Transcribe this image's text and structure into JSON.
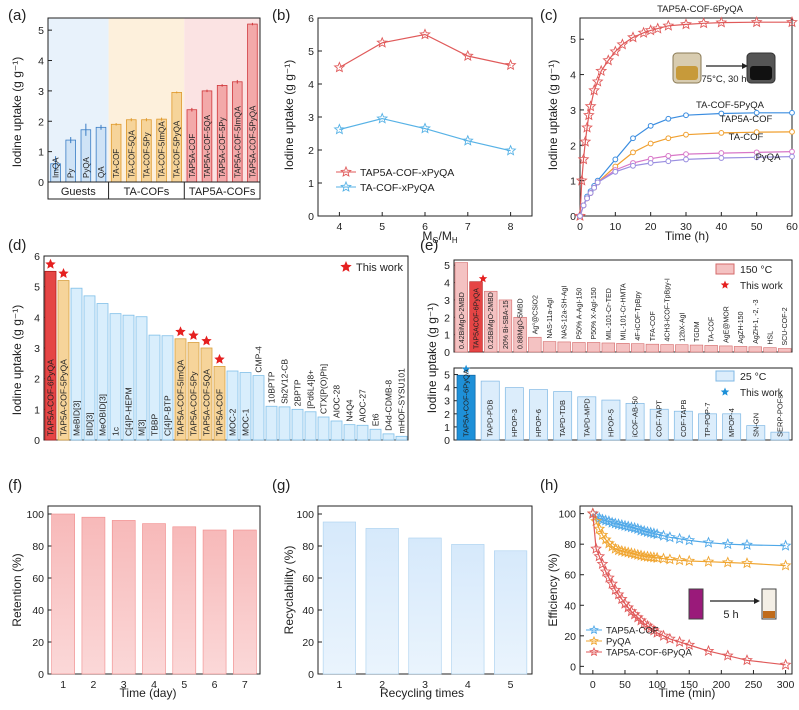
{
  "panels": {
    "a": {
      "panel_label": "(a)",
      "ylabel": "Iodine uptake (g g⁻¹)",
      "yticks": [
        "0",
        "1",
        "2",
        "3",
        "4",
        "5"
      ],
      "groups": [
        {
          "name": "Guests",
          "color": "#e8f2fb",
          "bar": "#cfe3f6",
          "edge": "#3a7dc4"
        },
        {
          "name": "TA-COFs",
          "color": "#fdf0dc",
          "bar": "#f6d49a",
          "edge": "#e09a2c"
        },
        {
          "name": "TAP5A-COFs",
          "color": "#fbe3e3",
          "bar": "#f3a9a9",
          "edge": "#d0383c"
        }
      ]
    },
    "b": {
      "panel_label": "(b)",
      "xlabel": "M",
      "xsub1": "G",
      "xmid": "/M",
      "xsub2": "H",
      "ylabel": "Iodine uptake (g g⁻¹)",
      "xticks": [
        "4",
        "5",
        "6",
        "7",
        "8"
      ],
      "yticks": [
        "0",
        "1",
        "2",
        "3",
        "4",
        "5",
        "6"
      ]
    },
    "c": {
      "panel_label": "(c)",
      "xlabel": "Time (h)",
      "ylabel": "Iodine uptake (g g⁻¹)",
      "xticks": [
        "0",
        "10",
        "20",
        "30",
        "40",
        "50",
        "60"
      ],
      "yticks": [
        "0",
        "1",
        "2",
        "3",
        "4",
        "5"
      ],
      "inset_label": "75°C, 30 h"
    },
    "d": {
      "panel_label": "(d)",
      "ylabel": "Iodine uptake (g g⁻¹)",
      "yticks": [
        "0",
        "1",
        "2",
        "3",
        "4",
        "5",
        "6"
      ],
      "legend": "This work"
    },
    "e": {
      "panel_label": "(e)",
      "ylabel": "Iodine uptake (g g⁻¹)",
      "yticks_top": [
        "0",
        "1",
        "2",
        "3",
        "4",
        "5"
      ],
      "yticks_bottom": [
        "0",
        "1",
        "2",
        "3",
        "4",
        "5"
      ],
      "legend_top_temp": "150 °C",
      "legend_bottom_temp": "25 °C",
      "legend_star": "This work"
    },
    "f": {
      "panel_label": "(f)",
      "xlabel": "Time (day)",
      "ylabel": "Retention (%)",
      "yticks": [
        "0",
        "20",
        "40",
        "60",
        "80",
        "100"
      ]
    },
    "g": {
      "panel_label": "(g)",
      "xlabel": "Recycling times",
      "ylabel": "Recyclability (%)",
      "yticks": [
        "0",
        "20",
        "40",
        "60",
        "80",
        "100"
      ]
    },
    "h": {
      "panel_label": "(h)",
      "xlabel": "Time (min)",
      "ylabel": "Efficiency (%)",
      "xticks": [
        "0",
        "50",
        "100",
        "150",
        "200",
        "250",
        "300"
      ],
      "yticks": [
        "0",
        "20",
        "40",
        "60",
        "80",
        "100"
      ],
      "inset_label": "5 h"
    }
  },
  "chart_data": [
    {
      "id": "a",
      "type": "bar",
      "ylim": [
        0,
        5.4
      ],
      "categories": [
        "ImQA",
        "Py",
        "PyQA",
        "QA",
        "TA-COF",
        "TA-COF-5QA",
        "TA-COF-5Py",
        "TA-COF-5ImQA",
        "TA-COF-5PyQA",
        "TAP5A-COF",
        "TAP5A-COF-5QA",
        "TAP5A-COF-5Py",
        "TAP5A-COF-5ImQA",
        "TAP5A-COF-5PyQA"
      ],
      "values": [
        0.6,
        1.38,
        1.72,
        1.8,
        1.9,
        2.05,
        2.05,
        2.07,
        2.95,
        2.38,
        3.0,
        3.18,
        3.3,
        5.2
      ],
      "errors": [
        0.25,
        0.1,
        0.2,
        0.08,
        0.04,
        0.05,
        0.05,
        0.05,
        0.03,
        0.06,
        0.04,
        0.04,
        0.06,
        0.04
      ],
      "group_index": [
        0,
        0,
        0,
        0,
        1,
        1,
        1,
        1,
        1,
        2,
        2,
        2,
        2,
        2
      ],
      "group_labels": [
        "Guests",
        "TA-COFs",
        "TAP5A-COFs"
      ]
    },
    {
      "id": "b",
      "type": "line",
      "xlim": [
        3.5,
        8.5
      ],
      "ylim": [
        0,
        6
      ],
      "x": [
        4,
        5,
        6,
        7,
        8
      ],
      "series": [
        {
          "name": "TAP5A-COF-xPyQA",
          "values": [
            4.5,
            5.25,
            5.5,
            4.85,
            4.57
          ],
          "color": "#e05a5a"
        },
        {
          "name": "TA-COF-xPyQA",
          "values": [
            2.62,
            2.95,
            2.65,
            2.28,
            1.98
          ],
          "color": "#57b2e6"
        }
      ]
    },
    {
      "id": "c",
      "type": "line",
      "xlim": [
        0,
        60
      ],
      "ylim": [
        0,
        5.6
      ],
      "series": [
        {
          "name": "TAP5A-COF-6PyQA",
          "color": "#e05a5a",
          "x": [
            0,
            0.5,
            1,
            1.5,
            2,
            2.5,
            3,
            4,
            5,
            6,
            8,
            10,
            12,
            15,
            18,
            20,
            22,
            25,
            30,
            35,
            40,
            50,
            60
          ],
          "values": [
            0,
            1.0,
            1.6,
            2.1,
            2.5,
            2.85,
            3.1,
            3.55,
            3.8,
            4.1,
            4.4,
            4.65,
            4.85,
            5.05,
            5.18,
            5.25,
            5.3,
            5.38,
            5.42,
            5.45,
            5.47,
            5.48,
            5.48
          ]
        },
        {
          "name": "TA-COF-5PyQA",
          "color": "#3b8de0",
          "x": [
            0,
            1,
            2,
            3,
            4,
            5,
            10,
            15,
            20,
            25,
            30,
            40,
            50,
            60
          ],
          "values": [
            0,
            0.3,
            0.55,
            0.7,
            0.85,
            1.0,
            1.6,
            2.2,
            2.55,
            2.75,
            2.85,
            2.9,
            2.92,
            2.92
          ]
        },
        {
          "name": "TAP5A-COF",
          "color": "#f0a030",
          "x": [
            0,
            1,
            2,
            3,
            4,
            5,
            10,
            15,
            20,
            25,
            30,
            40,
            50,
            60
          ],
          "values": [
            0,
            0.3,
            0.5,
            0.65,
            0.8,
            0.95,
            1.4,
            1.8,
            2.05,
            2.2,
            2.3,
            2.35,
            2.37,
            2.38
          ]
        },
        {
          "name": "TA-COF",
          "color": "#d877c8",
          "x": [
            0,
            1,
            2,
            3,
            4,
            5,
            10,
            15,
            20,
            25,
            30,
            40,
            50,
            60
          ],
          "values": [
            0,
            0.3,
            0.5,
            0.65,
            0.8,
            0.95,
            1.3,
            1.5,
            1.62,
            1.7,
            1.75,
            1.78,
            1.8,
            1.82
          ]
        },
        {
          "name": "PyQA",
          "color": "#9a8fe0",
          "x": [
            0,
            1,
            2,
            3,
            4,
            5,
            10,
            15,
            20,
            25,
            30,
            40,
            50,
            60
          ],
          "values": [
            0,
            0.3,
            0.5,
            0.65,
            0.8,
            0.95,
            1.25,
            1.42,
            1.5,
            1.55,
            1.6,
            1.64,
            1.66,
            1.68
          ]
        }
      ]
    },
    {
      "id": "d",
      "type": "bar",
      "ylim": [
        0,
        6
      ],
      "categories": [
        "TAP5A-COF-6PyQA",
        "TAP5A-COF-5PyQA",
        "MeBID[3]",
        "BID[3]",
        "MeOBID[3]",
        "1c",
        "C[4]P-HEPM",
        "M[3]",
        "TBBP",
        "C[4]P-BTP",
        "TAP5A-COF-5ImQA",
        "TAP5A-COF-5Py",
        "TAP5A-COF-5QA",
        "TAP5A-COF",
        "MOC-2",
        "MOC-1",
        "CMP-4",
        "10BPTP",
        "Sb2V12-CB",
        "2BPTP",
        "[Pd6L4]8+",
        "CTX[P(O)Ph]",
        "AIOC-28",
        "N4Q4",
        "AIOC-27",
        "Et6",
        "D4d-CDMB-8",
        "mHOF-SYSU101"
      ],
      "values": [
        5.5,
        5.2,
        4.95,
        4.7,
        4.45,
        4.12,
        4.07,
        4.02,
        3.42,
        3.4,
        3.3,
        3.18,
        3.0,
        2.4,
        2.25,
        2.2,
        2.1,
        1.1,
        1.08,
        1.0,
        0.92,
        0.75,
        0.62,
        0.5,
        0.48,
        0.35,
        0.2,
        0.12
      ],
      "this_work": [
        true,
        true,
        false,
        false,
        false,
        false,
        false,
        false,
        false,
        false,
        true,
        true,
        true,
        true,
        false,
        false,
        false,
        false,
        false,
        false,
        false,
        false,
        false,
        false,
        false,
        false,
        false,
        false
      ]
    },
    {
      "id": "e_top",
      "type": "bar",
      "title": "150 °C",
      "ylim": [
        0,
        5.3
      ],
      "categories": [
        "0.42BiMgO-2MBD",
        "TAP5ACOF-6PyQA",
        "0.25BiMgO-2MBD",
        "20% Bi-SBA-15",
        "0.88MgO-5MBD",
        "Ag⁰@CSiO2",
        "NAS-11a-AgI",
        "NAS-12a-SH-AgI",
        "P50% A-AgI-150",
        "P50% X-AgI-150",
        "MIL-101-Cr-TED",
        "MIL-101-Cr-HMTA",
        "4F-iCOF-TpBpy",
        "TFA-COF",
        "4CH3-iCOF-TpBpy-I",
        "12bX-AgI",
        "TGDM",
        "TA-COF",
        "AgE@MOR",
        "AgZH-150",
        "AgZH-1, -2, -3",
        "HSL",
        "SCU-COF-2"
      ],
      "values": [
        5.15,
        4.05,
        3.5,
        3.0,
        2.0,
        0.85,
        0.6,
        0.58,
        0.55,
        0.55,
        0.52,
        0.5,
        0.48,
        0.45,
        0.43,
        0.42,
        0.4,
        0.38,
        0.35,
        0.32,
        0.3,
        0.25,
        0.2
      ],
      "this_work": [
        false,
        true,
        false,
        false,
        false,
        false,
        false,
        false,
        false,
        false,
        false,
        false,
        false,
        false,
        false,
        false,
        false,
        false,
        false,
        false,
        false,
        false,
        false
      ]
    },
    {
      "id": "e_bottom",
      "type": "bar",
      "title": "25 °C",
      "ylim": [
        0,
        5.5
      ],
      "categories": [
        "TAP5A-COF-6PyQA",
        "TAPD-PDB",
        "HPOP-3",
        "HPOP-6",
        "TAPD-TDB",
        "TAPD-MPD",
        "HPOP-5",
        "iCOF-AB-50",
        "COF-TAPT",
        "COF-TAPB",
        "TP-POP-7",
        "MPOP-4",
        "SN-GN",
        "SERP-POFs"
      ],
      "values": [
        4.95,
        4.5,
        4.0,
        3.85,
        3.7,
        3.3,
        3.05,
        2.8,
        2.35,
        2.2,
        2.0,
        2.0,
        1.1,
        0.6
      ],
      "this_work": [
        true,
        false,
        false,
        false,
        false,
        false,
        false,
        false,
        false,
        false,
        false,
        false,
        false,
        false
      ]
    },
    {
      "id": "f",
      "type": "bar",
      "ylim": [
        0,
        105
      ],
      "categories": [
        "1",
        "2",
        "3",
        "4",
        "5",
        "6",
        "7"
      ],
      "values": [
        100,
        98,
        96,
        94,
        92,
        90,
        90
      ]
    },
    {
      "id": "g",
      "type": "bar",
      "ylim": [
        0,
        105
      ],
      "categories": [
        "1",
        "2",
        "3",
        "4",
        "5"
      ],
      "values": [
        95,
        91,
        85,
        81,
        77
      ]
    },
    {
      "id": "h",
      "type": "line",
      "xlim": [
        -20,
        310
      ],
      "ylim": [
        -5,
        105
      ],
      "series": [
        {
          "name": "TAP5A-COF",
          "color": "#4fa8e8",
          "x": [
            0,
            5,
            10,
            15,
            20,
            25,
            30,
            35,
            40,
            45,
            50,
            55,
            60,
            65,
            70,
            75,
            80,
            85,
            90,
            95,
            100,
            110,
            120,
            135,
            150,
            180,
            210,
            240,
            300
          ],
          "values": [
            100,
            98,
            97,
            96,
            95.5,
            95,
            94,
            93.5,
            93,
            92.5,
            92,
            91.5,
            91,
            90.5,
            90,
            89,
            88.5,
            88,
            87.5,
            87,
            86.5,
            85.5,
            84.5,
            83.5,
            82.5,
            81,
            80,
            79.5,
            79
          ]
        },
        {
          "name": "PyQA",
          "color": "#f0a530",
          "x": [
            0,
            5,
            10,
            15,
            20,
            25,
            30,
            35,
            40,
            45,
            50,
            55,
            60,
            65,
            70,
            75,
            80,
            85,
            90,
            95,
            100,
            110,
            120,
            135,
            150,
            180,
            210,
            240,
            300
          ],
          "values": [
            100,
            95,
            90,
            86,
            83,
            80.5,
            78.5,
            77,
            76,
            75.5,
            75,
            74.5,
            74,
            73.5,
            73,
            72.5,
            72,
            71.8,
            71.5,
            71.3,
            71,
            70.5,
            70,
            69.5,
            69,
            68.5,
            68,
            67.5,
            66
          ]
        },
        {
          "name": "TAP5A-COF-6PyQA",
          "color": "#e05a5a",
          "x": [
            0,
            5,
            10,
            15,
            20,
            25,
            30,
            35,
            40,
            45,
            50,
            55,
            60,
            65,
            70,
            75,
            80,
            85,
            90,
            95,
            100,
            110,
            120,
            135,
            150,
            180,
            210,
            240,
            300
          ],
          "values": [
            100,
            77,
            72,
            67,
            62,
            58,
            54,
            50,
            47,
            44,
            41,
            38.5,
            36,
            34,
            32,
            30,
            28,
            26.5,
            25,
            23.5,
            22,
            20,
            18,
            16,
            14,
            10,
            7,
            4,
            1
          ]
        }
      ]
    }
  ]
}
